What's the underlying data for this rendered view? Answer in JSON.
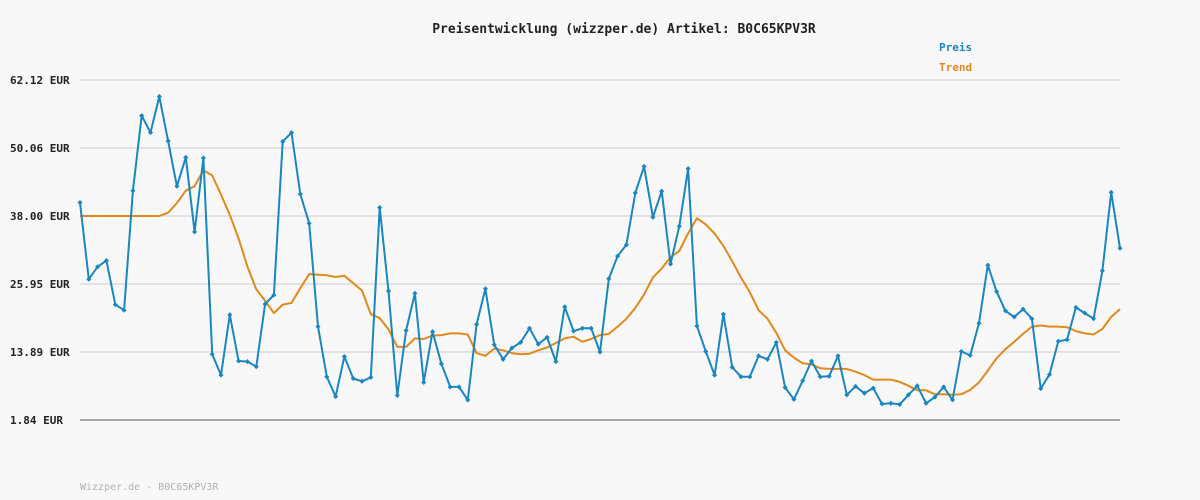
{
  "chart_data": {
    "type": "line",
    "title": "Preisentwicklung (wizzper.de) Artikel: B0C65KPV3R",
    "footer": "Wizzper.de - B0C65KPV3R",
    "xlabel": "",
    "ylabel": "",
    "ylim": [
      1.84,
      62.12
    ],
    "yticks": [
      {
        "value": 62.12,
        "label": "62.12 EUR"
      },
      {
        "value": 50.06,
        "label": "50.06 EUR"
      },
      {
        "value": 38.0,
        "label": "38.00 EUR"
      },
      {
        "value": 25.95,
        "label": "25.95 EUR"
      },
      {
        "value": 13.89,
        "label": "13.89 EUR"
      },
      {
        "value": 1.84,
        "label": "1.84 EUR"
      }
    ],
    "grid": true,
    "legend_position": "top-right",
    "series": [
      {
        "name": "Preis",
        "color": "#1a86c0",
        "markers": true,
        "values": [
          40.4,
          26.8,
          29.0,
          30.1,
          22.3,
          21.3,
          42.5,
          55.8,
          52.8,
          59.2,
          51.3,
          43.3,
          48.4,
          35.2,
          48.3,
          13.5,
          9.8,
          20.5,
          12.3,
          12.2,
          11.3,
          22.4,
          24.0,
          51.2,
          52.8,
          41.9,
          36.7,
          18.4,
          9.5,
          6.0,
          13.1,
          9.2,
          8.7,
          9.4,
          39.5,
          24.7,
          6.2,
          17.7,
          24.3,
          8.5,
          17.5,
          11.8,
          7.7,
          7.7,
          5.4,
          18.8,
          25.1,
          15.2,
          12.6,
          14.6,
          15.6,
          18.1,
          15.3,
          16.5,
          12.2,
          21.9,
          17.6,
          18.1,
          18.1,
          13.9,
          26.9,
          30.9,
          32.9,
          42.1,
          46.8,
          37.8,
          42.4,
          29.5,
          36.2,
          46.4,
          18.5,
          14.0,
          9.8,
          20.6,
          11.2,
          9.5,
          9.5,
          13.2,
          12.6,
          15.6,
          7.6,
          5.5,
          8.8,
          12.3,
          9.5,
          9.6,
          13.2,
          6.3,
          7.8,
          6.6,
          7.5,
          4.7,
          4.8,
          4.6,
          6.3,
          7.9,
          4.8,
          5.9,
          7.7,
          5.4,
          14.0,
          13.3,
          19.0,
          29.3,
          24.6,
          21.2,
          20.1,
          21.5,
          19.8,
          7.4,
          9.9,
          15.8,
          16.1,
          21.8,
          20.8,
          19.8,
          28.3,
          42.2,
          32.3
        ]
      },
      {
        "name": "Trend",
        "color": "#e08a1e",
        "markers": false,
        "values": [
          38.0,
          38.0,
          38.0,
          38.0,
          38.0,
          38.0,
          38.0,
          38.0,
          38.0,
          38.0,
          38.6,
          40.3,
          42.5,
          43.3,
          46.1,
          45.2,
          41.8,
          38.2,
          34.0,
          29.0,
          25.0,
          23.0,
          20.8,
          22.3,
          22.6,
          25.2,
          27.7,
          27.6,
          27.5,
          27.2,
          27.4,
          26.1,
          24.8,
          20.6,
          19.9,
          17.9,
          14.8,
          14.8,
          16.3,
          16.2,
          16.8,
          16.9,
          17.2,
          17.2,
          17.0,
          13.7,
          13.2,
          14.5,
          14.2,
          13.7,
          13.5,
          13.6,
          14.2,
          14.7,
          15.5,
          16.3,
          16.6,
          15.7,
          16.2,
          16.9,
          17.1,
          18.4,
          19.8,
          21.7,
          24.1,
          27.1,
          28.7,
          30.7,
          31.8,
          34.9,
          37.6,
          36.5,
          34.9,
          32.7,
          30.0,
          27.1,
          24.5,
          21.3,
          19.8,
          17.3,
          14.2,
          12.9,
          11.9,
          11.7,
          11.0,
          10.9,
          10.9,
          10.9,
          10.4,
          9.8,
          9.0,
          9.0,
          9.0,
          8.6,
          7.9,
          7.1,
          7.1,
          6.4,
          6.4,
          6.3,
          6.4,
          7.2,
          8.5,
          10.6,
          12.8,
          14.4,
          15.7,
          17.1,
          18.4,
          18.6,
          18.4,
          18.4,
          18.3,
          17.6,
          17.2,
          17.0,
          18.0,
          20.1,
          21.5
        ]
      }
    ]
  }
}
